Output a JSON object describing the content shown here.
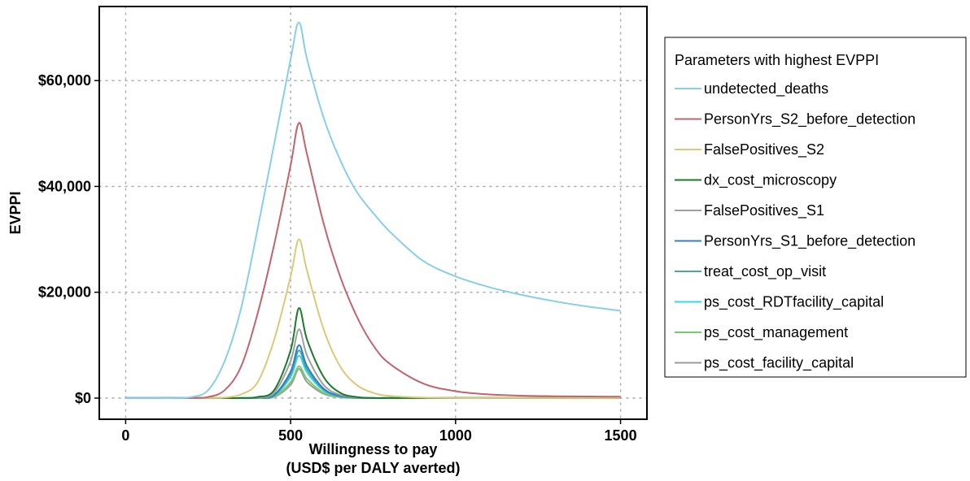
{
  "chart_data": {
    "type": "line",
    "title": "",
    "xlabel": "Willingness to pay",
    "xlabel_line2": "(USD$ per DALY averted)",
    "ylabel": "EVPPI",
    "xlim": [
      -80,
      1580
    ],
    "ylim": [
      -4000,
      74000
    ],
    "x_ticks": [
      0,
      500,
      1000,
      1500
    ],
    "x_tick_labels": [
      "0",
      "500",
      "1000",
      "1500"
    ],
    "y_ticks": [
      0,
      20000,
      40000,
      60000
    ],
    "y_tick_labels": [
      "$0",
      "$20,000",
      "$40,000",
      "$60,000"
    ],
    "grid": true,
    "legend": {
      "title": "Parameters with highest EVPPI",
      "position": "right"
    },
    "x": [
      0,
      50,
      100,
      150,
      200,
      250,
      300,
      350,
      400,
      450,
      500,
      525,
      550,
      600,
      650,
      700,
      750,
      800,
      900,
      1000,
      1100,
      1200,
      1300,
      1400,
      1500
    ],
    "series": [
      {
        "name": "undetected_deaths",
        "color": "#87CEEB",
        "values": [
          0,
          0,
          0,
          0,
          200,
          1500,
          7000,
          17000,
          32000,
          48000,
          64000,
          71000,
          64000,
          53000,
          45000,
          39000,
          35000,
          31500,
          26000,
          23000,
          21000,
          19500,
          18300,
          17300,
          16500
        ]
      },
      {
        "name": "PersonYrs_S2_before_detection",
        "color": "#C1646E",
        "values": [
          0,
          0,
          0,
          0,
          0,
          200,
          1500,
          6000,
          16000,
          29000,
          44000,
          52000,
          46000,
          33000,
          23000,
          15500,
          10000,
          6500,
          2800,
          1300,
          700,
          450,
          350,
          300,
          250
        ]
      },
      {
        "name": "FalsePositives_S2",
        "color": "#DCC978",
        "values": [
          0,
          0,
          0,
          0,
          0,
          0,
          100,
          700,
          3000,
          11000,
          23000,
          30000,
          24000,
          13000,
          6000,
          2500,
          1000,
          400,
          100,
          0,
          0,
          0,
          0,
          0,
          0
        ]
      },
      {
        "name": "dx_cost_microscopy",
        "color": "#1B7A2E",
        "values": [
          0,
          0,
          0,
          0,
          0,
          0,
          0,
          0,
          200,
          1500,
          9000,
          17000,
          11000,
          4000,
          1000,
          200,
          0,
          0,
          0,
          0,
          0,
          0,
          0,
          0,
          0
        ]
      },
      {
        "name": "FalsePositives_S1",
        "color": "#A0A0A0",
        "values": [
          0,
          0,
          0,
          0,
          0,
          0,
          0,
          0,
          100,
          1000,
          7000,
          13000,
          8000,
          2500,
          600,
          100,
          0,
          0,
          0,
          0,
          0,
          0,
          0,
          0,
          0
        ]
      },
      {
        "name": "PersonYrs_S1_before_detection",
        "color": "#2F7FD0",
        "values": [
          0,
          0,
          0,
          0,
          0,
          0,
          0,
          0,
          50,
          600,
          5000,
          10000,
          6000,
          1800,
          400,
          50,
          0,
          0,
          0,
          0,
          0,
          0,
          0,
          0,
          0
        ]
      },
      {
        "name": "treat_cost_op_visit",
        "color": "#4FA69B",
        "values": [
          0,
          0,
          0,
          0,
          0,
          0,
          0,
          0,
          50,
          500,
          4500,
          9000,
          5400,
          1600,
          350,
          50,
          0,
          0,
          0,
          0,
          0,
          0,
          0,
          0,
          0
        ]
      },
      {
        "name": "ps_cost_RDTfacility_capital",
        "color": "#37D7E0",
        "values": [
          0,
          0,
          0,
          0,
          0,
          0,
          0,
          0,
          50,
          450,
          4000,
          8000,
          4800,
          1400,
          300,
          50,
          0,
          0,
          0,
          0,
          0,
          0,
          0,
          0,
          0
        ]
      },
      {
        "name": "ps_cost_management",
        "color": "#6FD06A",
        "values": [
          0,
          0,
          0,
          0,
          0,
          0,
          0,
          0,
          30,
          300,
          3000,
          6000,
          3600,
          1000,
          200,
          30,
          0,
          0,
          0,
          0,
          0,
          0,
          0,
          0,
          0
        ]
      },
      {
        "name": "ps_cost_facility_capital",
        "color": "#9A9A9A",
        "values": [
          0,
          0,
          0,
          0,
          0,
          0,
          0,
          0,
          20,
          200,
          2500,
          5500,
          3000,
          800,
          150,
          20,
          0,
          0,
          0,
          0,
          0,
          0,
          0,
          0,
          0
        ]
      }
    ]
  }
}
